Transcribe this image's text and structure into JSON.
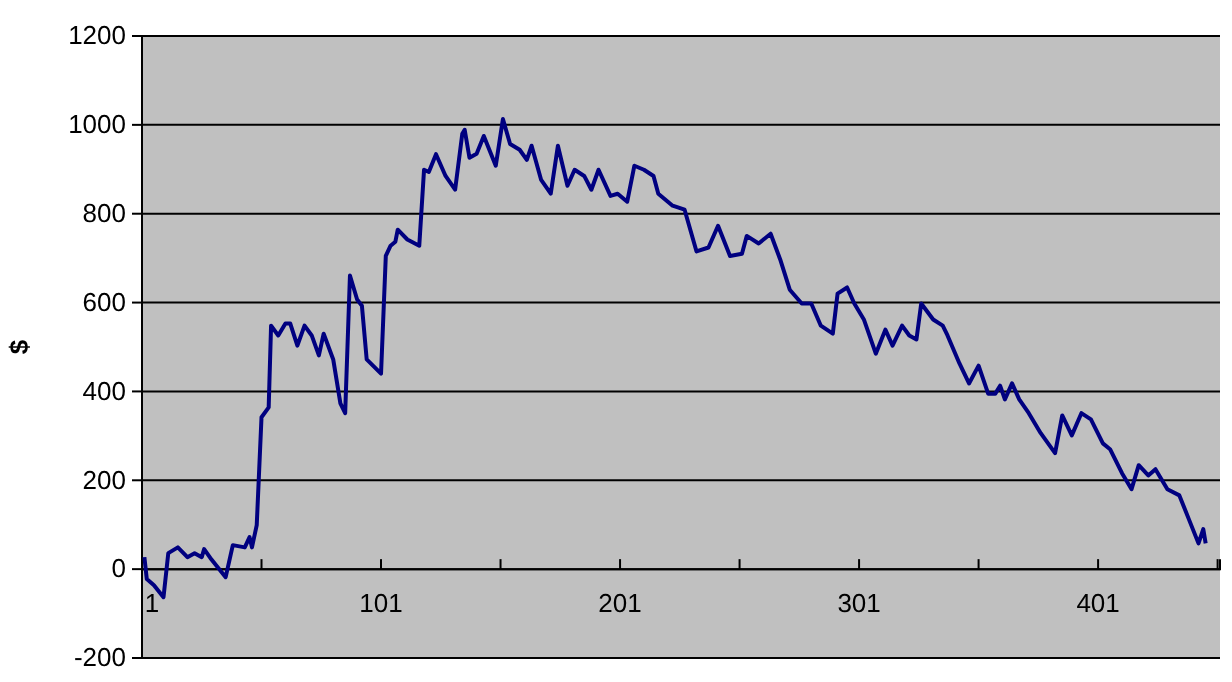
{
  "chart_data": {
    "type": "line",
    "ylabel": "$",
    "xlim": [
      1,
      452
    ],
    "ylim": [
      -200,
      1200
    ],
    "xticks": [
      1,
      {
        "value": 51,
        "label": null
      },
      101,
      {
        "value": 151,
        "label": null
      },
      201,
      {
        "value": 251,
        "label": null
      },
      301,
      {
        "value": 351,
        "label": null
      },
      401,
      {
        "value": 451,
        "label": null
      }
    ],
    "yticks": [
      -200,
      0,
      200,
      400,
      600,
      800,
      1000,
      1200
    ],
    "grid": "y",
    "marker": "none",
    "line_style": "solid",
    "series": [
      {
        "color": "#000080",
        "x": [
          2,
          3,
          6,
          10,
          12,
          16,
          20,
          23,
          26,
          27,
          30,
          36,
          39,
          44,
          46,
          47,
          49,
          51,
          54,
          55,
          58,
          61,
          63,
          66,
          69,
          72,
          75,
          77,
          81,
          84,
          86,
          88,
          91,
          93,
          95,
          101,
          103,
          105,
          107,
          108,
          112,
          117,
          119,
          121,
          124,
          128,
          132,
          135,
          136,
          138,
          141,
          144,
          149,
          152,
          155,
          159,
          162,
          164,
          168,
          172,
          175,
          179,
          182,
          186,
          189,
          192,
          197,
          200,
          204,
          207,
          211,
          215,
          217,
          223,
          228,
          233,
          238,
          242,
          247,
          252,
          254,
          259,
          264,
          268,
          272,
          277,
          281,
          285,
          290,
          292,
          296,
          299,
          303,
          308,
          312,
          315,
          319,
          322,
          325,
          327,
          332,
          336,
          338,
          343,
          347,
          351,
          355,
          358,
          360,
          362,
          365,
          368,
          372,
          377,
          383,
          386,
          390,
          394,
          398,
          403,
          406,
          411,
          415,
          418,
          422,
          425,
          430,
          435,
          439,
          443,
          445,
          446
        ],
        "values": [
          27,
          -22,
          -36,
          -63,
          36,
          49,
          27,
          36,
          27,
          45,
          22,
          -18,
          54,
          49,
          72,
          49,
          99,
          342,
          364,
          548,
          526,
          553,
          553,
          503,
          548,
          526,
          481,
          530,
          472,
          373,
          351,
          661,
          607,
          593,
          472,
          440,
          705,
          728,
          737,
          764,
          742,
          728,
          899,
          894,
          934,
          885,
          854,
          980,
          989,
          926,
          935,
          975,
          908,
          1013,
          957,
          944,
          921,
          953,
          876,
          845,
          953,
          863,
          899,
          885,
          854,
          899,
          840,
          845,
          827,
          908,
          899,
          885,
          845,
          818,
          809,
          715,
          724,
          773,
          705,
          710,
          750,
          733,
          755,
          697,
          629,
          598,
          598,
          548,
          530,
          620,
          634,
          598,
          562,
          485,
          539,
          503,
          548,
          526,
          517,
          598,
          562,
          548,
          526,
          463,
          418,
          458,
          395,
          395,
          413,
          382,
          418,
          382,
          351,
          306,
          261,
          346,
          301,
          351,
          337,
          283,
          270,
          216,
          180,
          234,
          211,
          225,
          180,
          166,
          112,
          58,
          90,
          58
        ]
      }
    ]
  }
}
